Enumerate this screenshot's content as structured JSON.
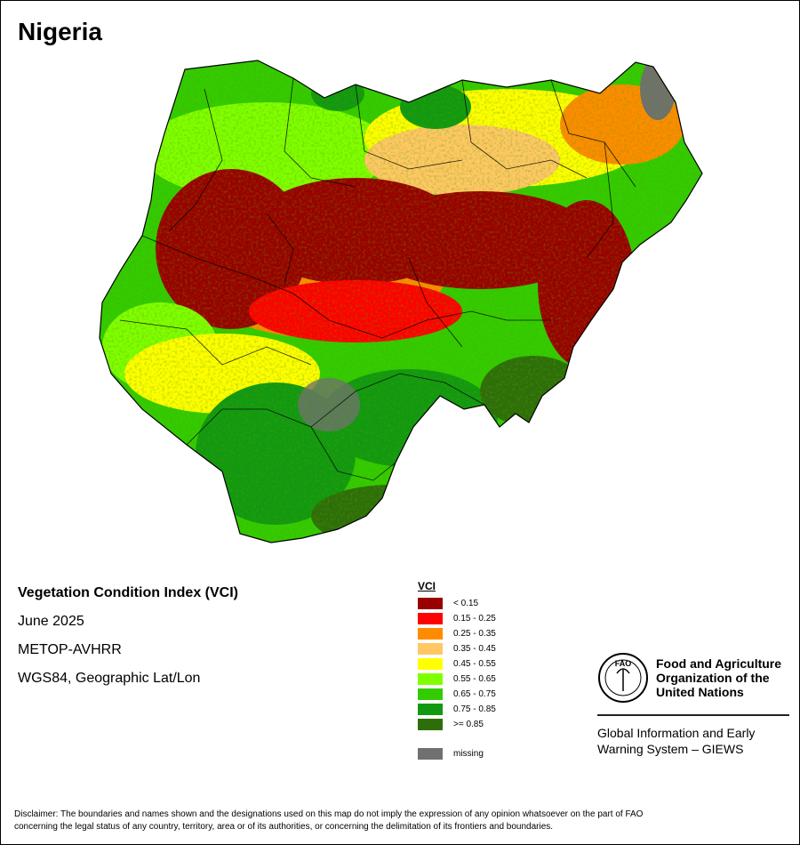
{
  "title": "Nigeria",
  "info": {
    "index_name": "Vegetation Condition Index (VCI)",
    "date": "June 2025",
    "sensor": "METOP-AVHRR",
    "projection": "WGS84, Geographic Lat/Lon"
  },
  "legend": {
    "heading": "VCI",
    "classes": [
      {
        "label": "< 0.15",
        "color": "#990000"
      },
      {
        "label": "0.15 - 0.25",
        "color": "#ff0000"
      },
      {
        "label": "0.25 - 0.35",
        "color": "#ff8c00"
      },
      {
        "label": "0.35 - 0.45",
        "color": "#ffc864"
      },
      {
        "label": "0.45 - 0.55",
        "color": "#ffff00"
      },
      {
        "label": "0.55 - 0.65",
        "color": "#80ff00"
      },
      {
        "label": "0.65 - 0.75",
        "color": "#33cc00"
      },
      {
        "label": "0.75 - 0.85",
        "color": "#119911"
      },
      {
        "label": ">= 0.85",
        "color": "#2e6e0a"
      }
    ],
    "missing": {
      "label": "missing",
      "color": "#707070"
    }
  },
  "organization": {
    "logo_text": "FAO",
    "name_line1": "Food and Agriculture",
    "name_line2": "Organization of the",
    "name_line3": "United Nations",
    "system_line1": "Global Information and Early",
    "system_line2": "Warning System – GIEWS"
  },
  "disclaimer_line1": "Disclaimer: The boundaries and names shown and the designations used on this map do not imply the expression of any opinion whatsoever on the part of FAO",
  "disclaimer_line2": "concerning the legal status of any country, territory, area or of its authorities, or concerning the delimitation of its frontiers and boundaries."
}
